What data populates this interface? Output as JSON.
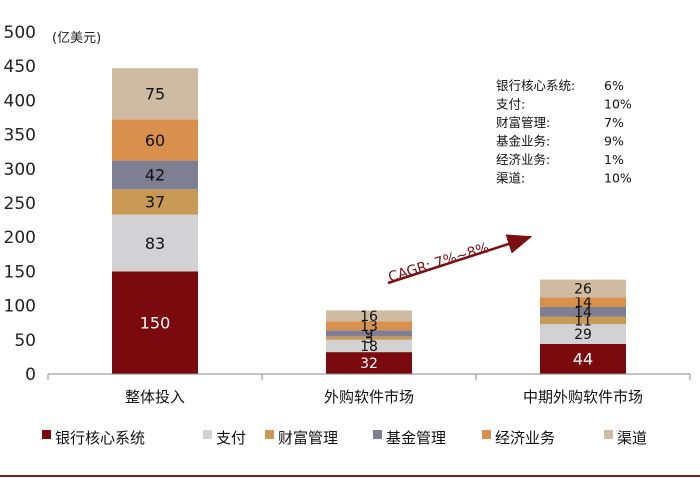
{
  "chart_data": {
    "type": "bar",
    "stacked": true,
    "unit_label": "(亿美元)",
    "categories": [
      "整体投入",
      "外购软件市场",
      "中期外购软件市场"
    ],
    "ylim": [
      0,
      500
    ],
    "yticks": [
      0,
      50,
      100,
      150,
      200,
      250,
      300,
      350,
      400,
      450,
      500
    ],
    "grid": false,
    "legend_position": "bottom",
    "series": [
      {
        "name": "银行核心系统",
        "color": "#7a0a0e",
        "values": [
          150,
          32,
          44
        ],
        "labels": [
          "150",
          "32",
          "44"
        ]
      },
      {
        "name": "支付",
        "color": "#d2d2d4",
        "values": [
          83,
          18,
          29
        ],
        "labels": [
          "83",
          "18",
          "29"
        ]
      },
      {
        "name": "财富管理",
        "color": "#c89a55",
        "values": [
          37,
          5,
          11
        ],
        "labels": [
          "37",
          "5",
          "11"
        ]
      },
      {
        "name": "基金管理",
        "color": "#7e7f93",
        "values": [
          42,
          9,
          14
        ],
        "labels": [
          "42",
          "9",
          "14"
        ]
      },
      {
        "name": "经济业务",
        "color": "#d9904c",
        "values": [
          60,
          13,
          14
        ],
        "labels": [
          "60",
          "13",
          "14"
        ]
      },
      {
        "name": "渠道",
        "color": "#cfbba1",
        "values": [
          75,
          16,
          26
        ],
        "labels": [
          "75",
          "16",
          "26"
        ]
      }
    ],
    "annotation": {
      "text": "CAGR: 7%~8%"
    },
    "growth_table": [
      {
        "name": "银行核心系统:",
        "value": "6%"
      },
      {
        "name": "支付:",
        "value": "10%"
      },
      {
        "name": "财富管理:",
        "value": "7%"
      },
      {
        "name": "基金业务:",
        "value": "9%"
      },
      {
        "name": "经济业务:",
        "value": "1%"
      },
      {
        "name": "渠道:",
        "value": "10%"
      }
    ]
  }
}
